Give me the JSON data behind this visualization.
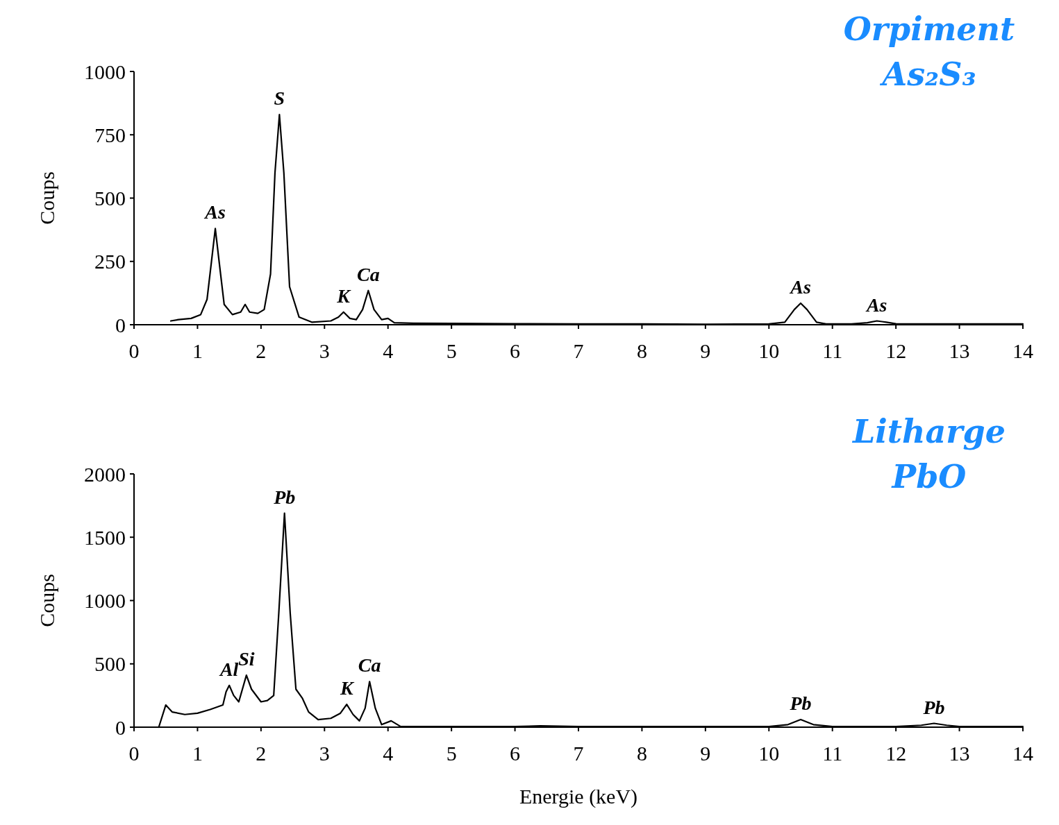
{
  "chart_data": [
    {
      "type": "line",
      "title": "Orpiment",
      "subtitle": "As₂S₃",
      "ylabel": "Coups",
      "xlim": [
        0,
        14
      ],
      "ylim": [
        0,
        1000
      ],
      "xticks": [
        0,
        1,
        2,
        3,
        4,
        5,
        6,
        7,
        8,
        9,
        10,
        11,
        12,
        13,
        14
      ],
      "yticks": [
        0,
        250,
        500,
        750,
        1000
      ],
      "grid": false,
      "series": [
        {
          "color": "#000000",
          "x": [
            0.58,
            0.7,
            0.9,
            1.05,
            1.15,
            1.22,
            1.28,
            1.34,
            1.42,
            1.55,
            1.68,
            1.75,
            1.82,
            1.95,
            2.05,
            2.15,
            2.22,
            2.29,
            2.36,
            2.45,
            2.6,
            2.8,
            3.1,
            3.22,
            3.3,
            3.4,
            3.5,
            3.6,
            3.69,
            3.78,
            3.9,
            4.0,
            4.1,
            4.4,
            5,
            6,
            7,
            8,
            9,
            10,
            10.25,
            10.4,
            10.5,
            10.6,
            10.75,
            10.9,
            11.3,
            11.55,
            11.7,
            11.85,
            12,
            12.5,
            13,
            14
          ],
          "values": [
            15,
            20,
            25,
            40,
            100,
            250,
            380,
            250,
            80,
            40,
            50,
            80,
            50,
            45,
            60,
            200,
            600,
            830,
            600,
            150,
            30,
            10,
            15,
            30,
            50,
            25,
            20,
            60,
            135,
            60,
            20,
            25,
            8,
            6,
            5,
            4,
            3,
            3,
            2,
            3,
            10,
            60,
            85,
            60,
            10,
            3,
            3,
            8,
            15,
            10,
            4,
            3,
            3,
            3
          ]
        }
      ],
      "annotations": [
        {
          "text": "As",
          "x": 1.28,
          "y": 380
        },
        {
          "text": "S",
          "x": 2.29,
          "y": 830
        },
        {
          "text": "K",
          "x": 3.3,
          "y": 50
        },
        {
          "text": "Ca",
          "x": 3.69,
          "y": 135
        },
        {
          "text": "As",
          "x": 10.5,
          "y": 85
        },
        {
          "text": "As",
          "x": 11.7,
          "y": 15
        }
      ]
    },
    {
      "type": "line",
      "title": "Litharge",
      "subtitle": "PbO",
      "xlabel": "Energie (keV)",
      "ylabel": "Coups",
      "xlim": [
        0,
        14
      ],
      "ylim": [
        0,
        2000
      ],
      "xticks": [
        0,
        1,
        2,
        3,
        4,
        5,
        6,
        7,
        8,
        9,
        10,
        11,
        12,
        13,
        14
      ],
      "yticks": [
        0,
        500,
        1000,
        1500,
        2000
      ],
      "grid": false,
      "series": [
        {
          "color": "#000000",
          "x": [
            0.39,
            0.5,
            0.6,
            0.8,
            1.0,
            1.2,
            1.4,
            1.45,
            1.5,
            1.57,
            1.65,
            1.77,
            1.85,
            2.0,
            2.1,
            2.2,
            2.28,
            2.37,
            2.46,
            2.55,
            2.65,
            2.75,
            2.9,
            3.1,
            3.25,
            3.35,
            3.45,
            3.55,
            3.64,
            3.71,
            3.8,
            3.9,
            4.05,
            4.2,
            5,
            6,
            6.4,
            7,
            8,
            9,
            10,
            10.3,
            10.5,
            10.7,
            11,
            12,
            12.4,
            12.6,
            12.8,
            13,
            14
          ],
          "values": [
            0,
            175,
            120,
            100,
            110,
            140,
            175,
            280,
            330,
            250,
            200,
            410,
            300,
            200,
            210,
            250,
            900,
            1690,
            900,
            300,
            230,
            120,
            60,
            70,
            110,
            180,
            100,
            50,
            150,
            360,
            150,
            20,
            50,
            5,
            5,
            5,
            10,
            5,
            5,
            5,
            5,
            20,
            60,
            20,
            5,
            5,
            15,
            30,
            15,
            5,
            5
          ]
        }
      ],
      "annotations": [
        {
          "text": "Al",
          "x": 1.5,
          "y": 330
        },
        {
          "text": "Si",
          "x": 1.77,
          "y": 410
        },
        {
          "text": "Pb",
          "x": 2.37,
          "y": 1690
        },
        {
          "text": "K",
          "x": 3.35,
          "y": 180
        },
        {
          "text": "Ca",
          "x": 3.71,
          "y": 360
        },
        {
          "text": "Pb",
          "x": 10.5,
          "y": 60
        },
        {
          "text": "Pb",
          "x": 12.6,
          "y": 30
        }
      ]
    }
  ]
}
